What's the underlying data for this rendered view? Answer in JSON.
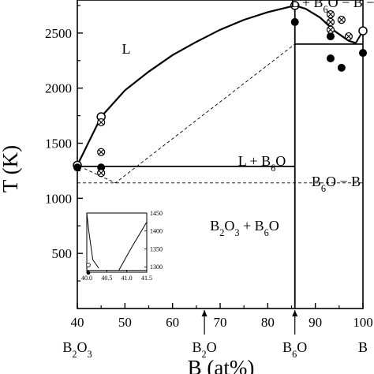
{
  "chart_data": {
    "type": "scatter",
    "title": "",
    "xlabel": "B (at%)",
    "ylabel": "T (K)",
    "xlim": [
      40,
      100
    ],
    "ylim": [
      0,
      2800
    ],
    "xticks": [
      40,
      50,
      60,
      70,
      80,
      90,
      100
    ],
    "yticks": [
      500,
      1000,
      1500,
      2000,
      2500
    ],
    "region_labels": {
      "liquid": "L",
      "liquid_b6o_upper": "L + B",
      "liquid_b6o": "L + B",
      "b6o_b": "B",
      "b2o3_b6o": "B"
    },
    "region_label_suffixes": {
      "liquid_b6o": "O",
      "b6o_b_sep": "O − B",
      "b2o3_b6o_mid": "O",
      "b2o3_b6o_plus": " + B",
      "b2o3_b6o_end": "O",
      "upper_sep": "O − B − L",
      "sub6": "6",
      "sub2": "2",
      "sub3": "3"
    },
    "compositions": {
      "b2o3": {
        "x": 40,
        "label": "B",
        "sub": "2",
        "mid": "O",
        "sub2": "3"
      },
      "b2o": {
        "x": 66.7,
        "label": "B",
        "sub": "2",
        "mid": "O"
      },
      "b6o": {
        "x": 85.7,
        "label": "B",
        "sub": "6",
        "mid": "O"
      },
      "b": {
        "x": 100,
        "label": "B"
      }
    },
    "liquidus_curve": [
      [
        40.0,
        1300
      ],
      [
        42.5,
        1520
      ],
      [
        45.0,
        1740
      ],
      [
        50.0,
        1980
      ],
      [
        55.0,
        2150
      ],
      [
        60.0,
        2300
      ],
      [
        65.0,
        2420
      ],
      [
        70.0,
        2530
      ],
      [
        75.0,
        2620
      ],
      [
        80.0,
        2690
      ],
      [
        85.7,
        2750
      ],
      [
        88.0,
        2720
      ],
      [
        91.0,
        2640
      ],
      [
        94.0,
        2520
      ],
      [
        97.0,
        2430
      ],
      [
        98.5,
        2410
      ]
    ],
    "right_liquidus": [
      [
        98.5,
        2410
      ],
      [
        100,
        2520
      ]
    ],
    "eutectic_left_T": 1290,
    "eutectic_left_xrange": [
      40,
      85.7
    ],
    "eutectic_right_T": 2400,
    "eutectic_right_xrange": [
      85.7,
      100
    ],
    "metastable_line_T": 1140,
    "metastable_dashed": [
      [
        41.5,
        1270
      ],
      [
        48.0,
        1140
      ],
      [
        85.7,
        2400
      ]
    ],
    "series": [
      {
        "name": "open circles",
        "marker": "open-circle",
        "points": [
          [
            40,
            1300
          ],
          [
            45,
            1740
          ],
          [
            85.7,
            2750
          ],
          [
            100,
            2520
          ]
        ]
      },
      {
        "name": "filled circles",
        "marker": "filled-circle",
        "points": [
          [
            40,
            1280
          ],
          [
            45,
            1280
          ],
          [
            85.7,
            2600
          ],
          [
            93.2,
            2470
          ],
          [
            93.2,
            2270
          ],
          [
            95.5,
            2185
          ],
          [
            100,
            2320
          ]
        ]
      },
      {
        "name": "crossed circles",
        "marker": "crossed-circle",
        "points": [
          [
            45,
            1690
          ],
          [
            45,
            1420
          ],
          [
            45,
            1230
          ],
          [
            93.2,
            2670
          ],
          [
            93.2,
            2600
          ],
          [
            93.2,
            2530
          ],
          [
            95.5,
            2620
          ],
          [
            97.0,
            2470
          ]
        ]
      }
    ],
    "inset": {
      "xlim": [
        40.0,
        41.5
      ],
      "ylim": [
        1285,
        1450
      ],
      "xticks": [
        "40.0",
        "40.5",
        "41.0",
        "41.5"
      ],
      "yticks": [
        "1300",
        "1350",
        "1400",
        "1450"
      ],
      "left_line": [
        [
          40.0,
          1450
        ],
        [
          40.05,
          1400
        ],
        [
          40.15,
          1320
        ],
        [
          40.3,
          1296
        ]
      ],
      "right_line": [
        [
          40.8,
          1290
        ],
        [
          41.1,
          1350
        ],
        [
          41.5,
          1425
        ]
      ],
      "horizontal_T": 1290,
      "open_circle": [
        40.0,
        1305
      ],
      "filled_circle": [
        40.0,
        1290
      ]
    }
  }
}
